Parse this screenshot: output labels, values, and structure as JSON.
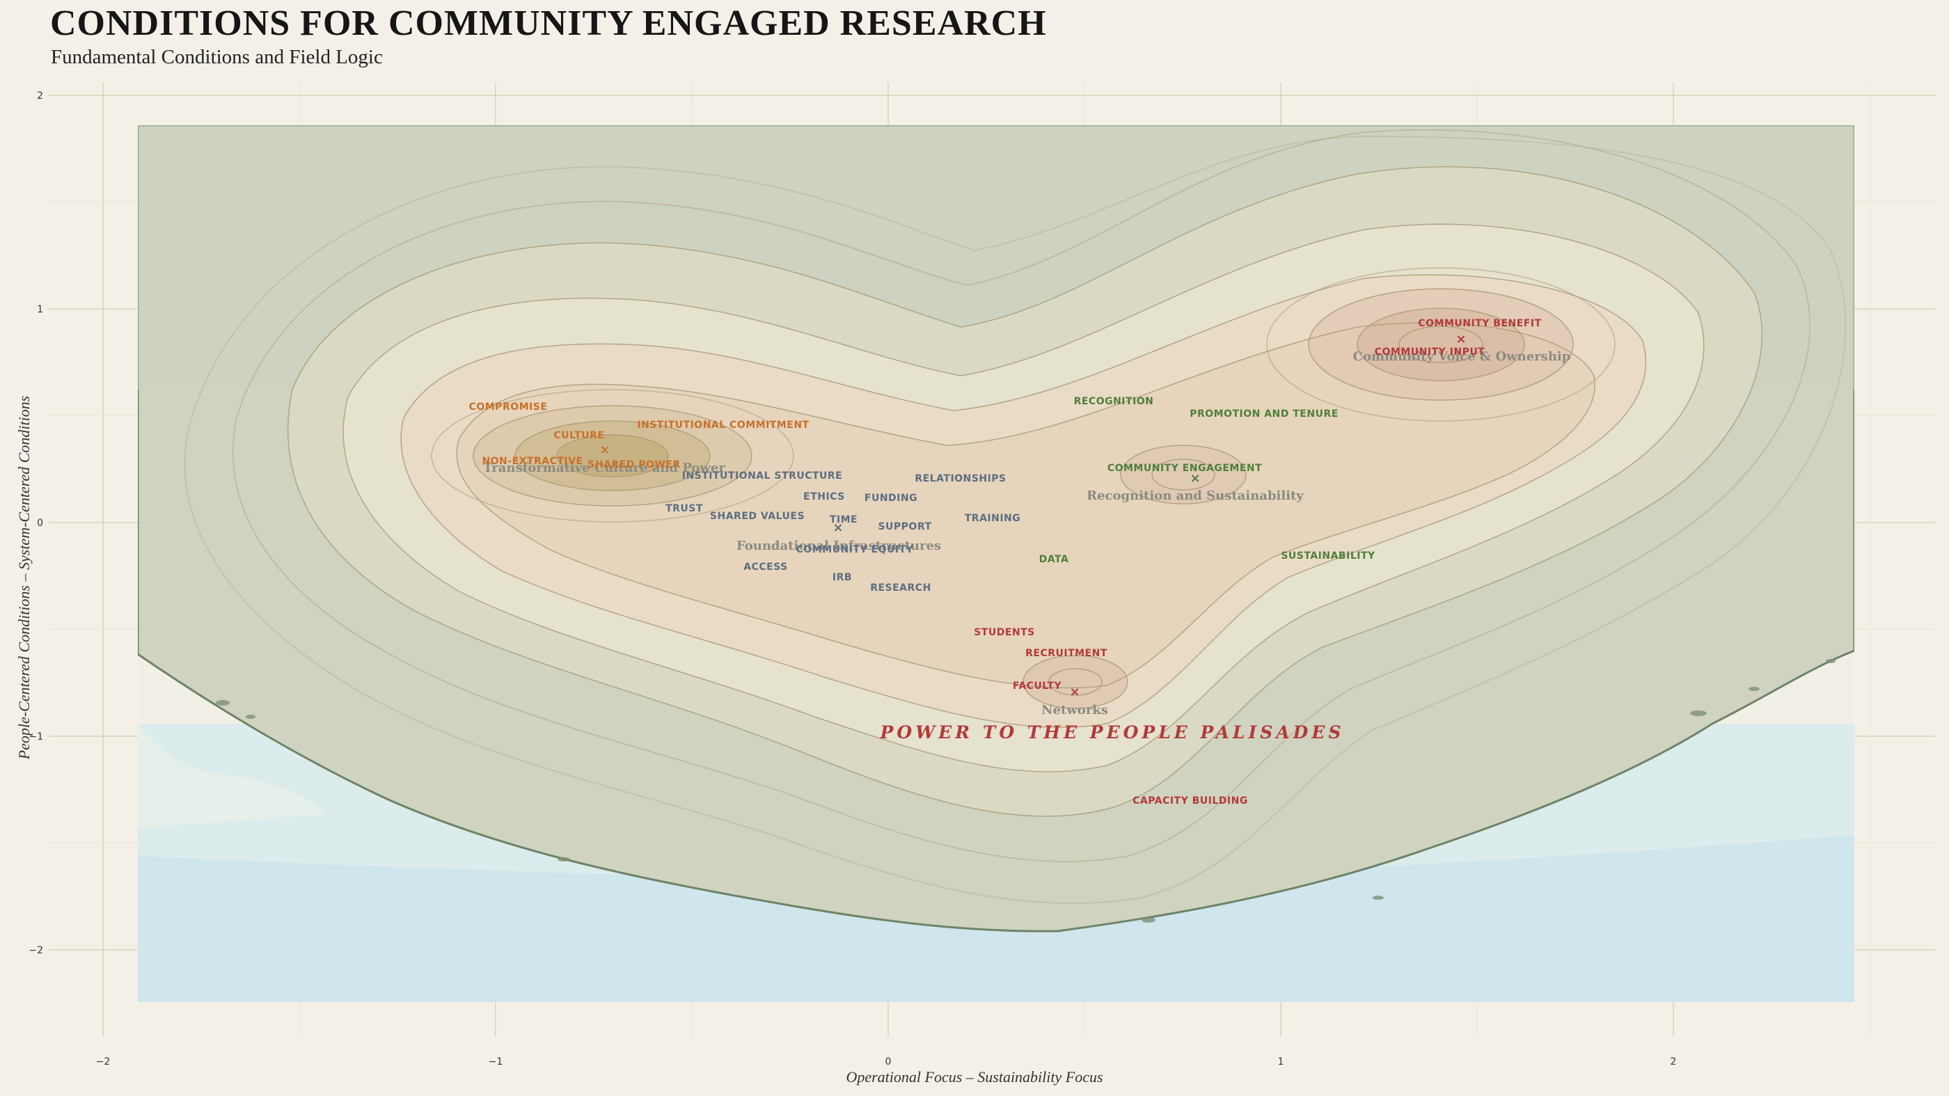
{
  "title": "CONDITIONS FOR COMMUNITY ENGAGED RESEARCH",
  "subtitle": "Fundamental Conditions and Field Logic",
  "axes": {
    "x_title": "Operational Focus – Sustainability Focus",
    "y_title": "People-Centered Conditions – System-Centered Conditions",
    "x_ticks": [
      "−2",
      "−1",
      "0",
      "1",
      "2"
    ],
    "y_ticks": [
      "2",
      "1",
      "0",
      "−1",
      "−2"
    ]
  },
  "colors": {
    "background": "#f4f0e8",
    "orange": "#c8702a",
    "blue": "#5b6e82",
    "green": "#4f7f3c",
    "red": "#b23a3a",
    "region": "#8a8a80"
  },
  "regions": {
    "transformative": "Transformative Culture and Power",
    "foundational": "Foundational Infrastructures",
    "recognition": "Recognition and Sustainability",
    "voice": "Community Voice & Ownership",
    "networks": "Networks"
  },
  "feature_title": "POWER TO THE PEOPLE PALISADES",
  "labels": {
    "compromise": "COMPROMISE",
    "culture": "CULTURE",
    "institutional_commitment": "INSTITUTIONAL COMMITMENT",
    "non_extractive": "NON-EXTRACTIVE",
    "shared_power": "SHARED POWER",
    "institutional_structure": "INSTITUTIONAL STRUCTURE",
    "ethics": "ETHICS",
    "funding": "FUNDING",
    "relationships": "RELATIONSHIPS",
    "trust": "TRUST",
    "shared_values": "SHARED VALUES",
    "time": "TIME",
    "support": "SUPPORT",
    "training": "TRAINING",
    "community_equity": "COMMUNITY EQUITY",
    "access": "ACCESS",
    "irb": "IRB",
    "research": "RESEARCH",
    "data": "DATA",
    "recognition": "RECOGNITION",
    "promotion_tenure": "PROMOTION AND TENURE",
    "community_engagement": "COMMUNITY ENGAGEMENT",
    "sustainability": "SUSTAINABILITY",
    "community_benefit": "COMMUNITY BENEFIT",
    "community_input": "COMMUNITY INPUT",
    "students": "STUDENTS",
    "recruitment": "RECRUITMENT",
    "faculty": "FACULTY",
    "capacity_building": "CAPACITY BUILDING"
  }
}
